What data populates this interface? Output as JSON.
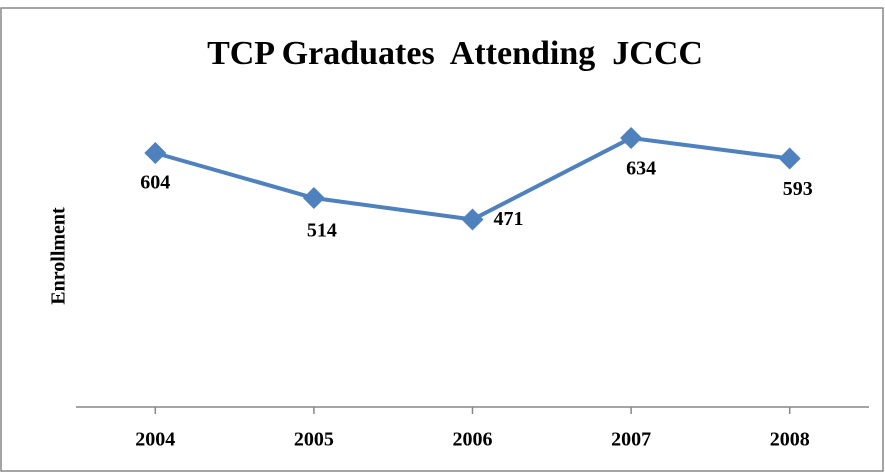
{
  "chart_data": {
    "type": "line",
    "title": "TCP Graduates  Attending  JCCC",
    "y_label": "Enrollment",
    "categories": [
      "2004",
      "2005",
      "2006",
      "2007",
      "2008"
    ],
    "series": [
      {
        "name": "Enrollment",
        "color": "#4f81bd",
        "values": [
          604,
          514,
          471,
          634,
          593
        ]
      }
    ],
    "ylim": [
      100,
      700
    ]
  }
}
